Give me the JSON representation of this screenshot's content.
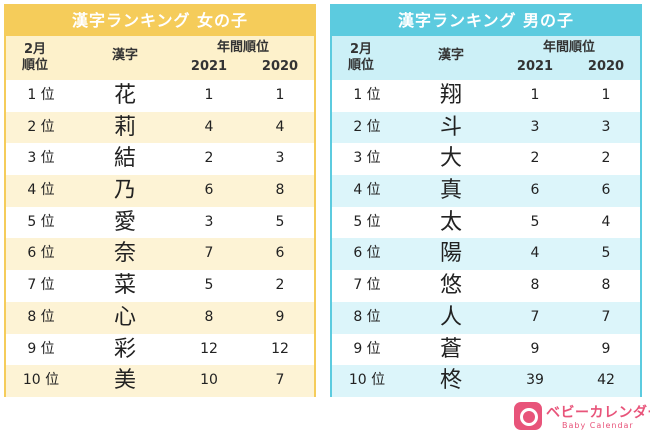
{
  "girls": {
    "title": "漢字ランキング 女の子",
    "header": {
      "month": "2月",
      "rank": "順位",
      "kanji": "漢字",
      "annual": "年間順位",
      "y1": "2021",
      "y2": "2020"
    },
    "rows": [
      {
        "rank": "1 位",
        "kanji": "花",
        "y1": "1",
        "y2": "1"
      },
      {
        "rank": "2 位",
        "kanji": "莉",
        "y1": "4",
        "y2": "4"
      },
      {
        "rank": "3 位",
        "kanji": "結",
        "y1": "2",
        "y2": "3"
      },
      {
        "rank": "4 位",
        "kanji": "乃",
        "y1": "6",
        "y2": "8"
      },
      {
        "rank": "5 位",
        "kanji": "愛",
        "y1": "3",
        "y2": "5"
      },
      {
        "rank": "6 位",
        "kanji": "奈",
        "y1": "7",
        "y2": "6"
      },
      {
        "rank": "7 位",
        "kanji": "菜",
        "y1": "5",
        "y2": "2"
      },
      {
        "rank": "8 位",
        "kanji": "心",
        "y1": "8",
        "y2": "9"
      },
      {
        "rank": "9 位",
        "kanji": "彩",
        "y1": "12",
        "y2": "12"
      },
      {
        "rank": "10 位",
        "kanji": "美",
        "y1": "10",
        "y2": "7"
      }
    ]
  },
  "boys": {
    "title": "漢字ランキング 男の子",
    "header": {
      "month": "2月",
      "rank": "順位",
      "kanji": "漢字",
      "annual": "年間順位",
      "y1": "2021",
      "y2": "2020"
    },
    "rows": [
      {
        "rank": "1 位",
        "kanji": "翔",
        "y1": "1",
        "y2": "1"
      },
      {
        "rank": "2 位",
        "kanji": "斗",
        "y1": "3",
        "y2": "3"
      },
      {
        "rank": "3 位",
        "kanji": "大",
        "y1": "2",
        "y2": "2"
      },
      {
        "rank": "4 位",
        "kanji": "真",
        "y1": "6",
        "y2": "6"
      },
      {
        "rank": "5 位",
        "kanji": "太",
        "y1": "5",
        "y2": "4"
      },
      {
        "rank": "6 位",
        "kanji": "陽",
        "y1": "4",
        "y2": "5"
      },
      {
        "rank": "7 位",
        "kanji": "悠",
        "y1": "8",
        "y2": "8"
      },
      {
        "rank": "8 位",
        "kanji": "人",
        "y1": "7",
        "y2": "7"
      },
      {
        "rank": "9 位",
        "kanji": "蒼",
        "y1": "9",
        "y2": "9"
      },
      {
        "rank": "10 位",
        "kanji": "柊",
        "y1": "39",
        "y2": "42"
      }
    ]
  },
  "logo": {
    "name": "ベビーカレンダー",
    "sub": "Baby Calendar",
    "icon": "calendar-icon",
    "color": "#e8547a"
  },
  "colors": {
    "girls_accent": "#f5cc5a",
    "boys_accent": "#5ccbdf"
  }
}
